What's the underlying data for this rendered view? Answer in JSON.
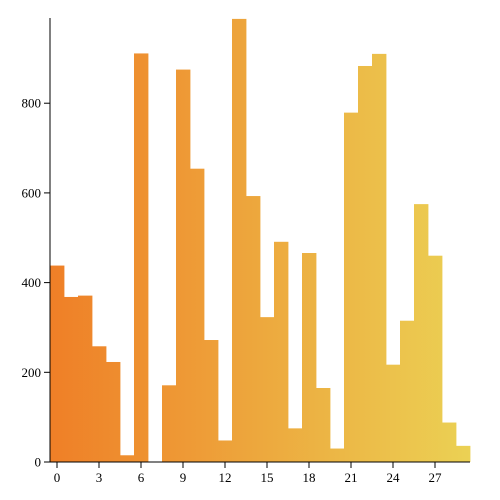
{
  "chart_data": {
    "type": "bar",
    "x": [
      0,
      1,
      2,
      3,
      4,
      5,
      6,
      7,
      8,
      9,
      10,
      11,
      12,
      13,
      14,
      15,
      16,
      17,
      18,
      19,
      20,
      21,
      22,
      23,
      24,
      25,
      26,
      27,
      28,
      29
    ],
    "values": [
      438,
      368,
      371,
      258,
      223,
      15,
      911,
      0,
      171,
      875,
      654,
      272,
      48,
      988,
      593,
      323,
      491,
      75,
      466,
      165,
      30,
      779,
      883,
      910,
      217,
      315,
      575,
      460,
      88,
      36
    ],
    "xticks": [
      "0",
      "3",
      "6",
      "9",
      "12",
      "15",
      "18",
      "21",
      "24",
      "27"
    ],
    "xtick_values": [
      0,
      3,
      6,
      9,
      12,
      15,
      18,
      21,
      24,
      27
    ],
    "yticks": [
      "0",
      "200",
      "400",
      "600",
      "800"
    ],
    "ytick_values": [
      0,
      200,
      400,
      600,
      800
    ],
    "xlim": [
      -0.5,
      29.5
    ],
    "ylim": [
      0,
      990
    ],
    "title": "",
    "xlabel": "",
    "ylabel": "",
    "grid": false,
    "colors": {
      "start": "#ef7f27",
      "end": "#ebd154"
    }
  }
}
